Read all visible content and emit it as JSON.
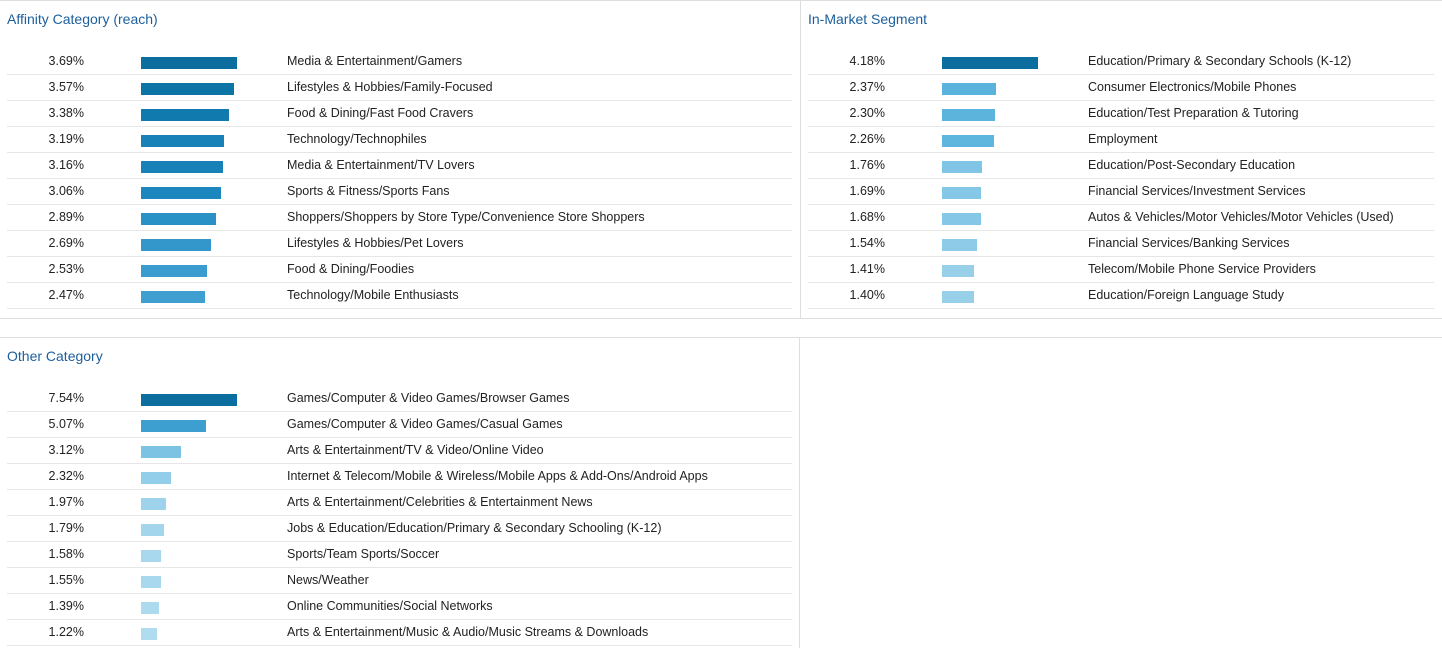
{
  "panels": [
    {
      "id": "affinity",
      "title": "Affinity Category (reach)",
      "rows": [
        {
          "percent_text": "3.69%",
          "value": 3.69,
          "label": "Media & Entertainment/Gamers",
          "color": "#0b6e9e"
        },
        {
          "percent_text": "3.57%",
          "value": 3.57,
          "label": "Lifestyles & Hobbies/Family-Focused",
          "color": "#0d74a6"
        },
        {
          "percent_text": "3.38%",
          "value": 3.38,
          "label": "Food & Dining/Fast Food Cravers",
          "color": "#1079ad"
        },
        {
          "percent_text": "3.19%",
          "value": 3.19,
          "label": "Technology/Technophiles",
          "color": "#1781b8"
        },
        {
          "percent_text": "3.16%",
          "value": 3.16,
          "label": "Media & Entertainment/TV Lovers",
          "color": "#1781b8"
        },
        {
          "percent_text": "3.06%",
          "value": 3.06,
          "label": "Sports & Fitness/Sports Fans",
          "color": "#1c87bf"
        },
        {
          "percent_text": "2.89%",
          "value": 2.89,
          "label": "Shoppers/Shoppers by Store Type/Convenience Store Shoppers",
          "color": "#2a91c7"
        },
        {
          "percent_text": "2.69%",
          "value": 2.69,
          "label": "Lifestyles & Hobbies/Pet Lovers",
          "color": "#3497cb"
        },
        {
          "percent_text": "2.53%",
          "value": 2.53,
          "label": "Food & Dining/Foodies",
          "color": "#3b9ccf"
        },
        {
          "percent_text": "2.47%",
          "value": 2.47,
          "label": "Technology/Mobile Enthusiasts",
          "color": "#3f9fd1"
        }
      ]
    },
    {
      "id": "in-market",
      "title": "In-Market Segment",
      "rows": [
        {
          "percent_text": "4.18%",
          "value": 4.18,
          "label": "Education/Primary & Secondary Schools (K-12)",
          "color": "#0b6e9e"
        },
        {
          "percent_text": "2.37%",
          "value": 2.37,
          "label": "Consumer Electronics/Mobile Phones",
          "color": "#5ab3dc"
        },
        {
          "percent_text": "2.30%",
          "value": 2.3,
          "label": "Education/Test Preparation & Tutoring",
          "color": "#5cb4dd"
        },
        {
          "percent_text": "2.26%",
          "value": 2.26,
          "label": "Employment",
          "color": "#5eb5de"
        },
        {
          "percent_text": "1.76%",
          "value": 1.76,
          "label": "Education/Post-Secondary Education",
          "color": "#80c5e5"
        },
        {
          "percent_text": "1.69%",
          "value": 1.69,
          "label": "Financial Services/Investment Services",
          "color": "#84c7e6"
        },
        {
          "percent_text": "1.68%",
          "value": 1.68,
          "label": "Autos & Vehicles/Motor Vehicles/Motor Vehicles (Used)",
          "color": "#84c7e6"
        },
        {
          "percent_text": "1.54%",
          "value": 1.54,
          "label": "Financial Services/Banking Services",
          "color": "#8dcbe8"
        },
        {
          "percent_text": "1.41%",
          "value": 1.41,
          "label": "Telecom/Mobile Phone Service Providers",
          "color": "#98d0ea"
        },
        {
          "percent_text": "1.40%",
          "value": 1.4,
          "label": "Education/Foreign Language Study",
          "color": "#98d0ea"
        }
      ]
    },
    {
      "id": "other",
      "title": "Other Category",
      "rows": [
        {
          "percent_text": "7.54%",
          "value": 7.54,
          "label": "Games/Computer & Video Games/Browser Games",
          "color": "#0b6e9e"
        },
        {
          "percent_text": "5.07%",
          "value": 5.07,
          "label": "Games/Computer & Video Games/Casual Games",
          "color": "#3d9ed0"
        },
        {
          "percent_text": "3.12%",
          "value": 3.12,
          "label": "Arts & Entertainment/TV & Video/Online Video",
          "color": "#7cc3e3"
        },
        {
          "percent_text": "2.32%",
          "value": 2.32,
          "label": "Internet & Telecom/Mobile & Wireless/Mobile Apps & Add-Ons/Android Apps",
          "color": "#92cde9"
        },
        {
          "percent_text": "1.97%",
          "value": 1.97,
          "label": "Arts & Entertainment/Celebrities & Entertainment News",
          "color": "#9dd3eb"
        },
        {
          "percent_text": "1.79%",
          "value": 1.79,
          "label": "Jobs & Education/Education/Primary & Secondary Schooling (K-12)",
          "color": "#a3d6ed"
        },
        {
          "percent_text": "1.58%",
          "value": 1.58,
          "label": "Sports/Team Sports/Soccer",
          "color": "#a8d8ee"
        },
        {
          "percent_text": "1.55%",
          "value": 1.55,
          "label": "News/Weather",
          "color": "#a8d8ee"
        },
        {
          "percent_text": "1.39%",
          "value": 1.39,
          "label": "Online Communities/Social Networks",
          "color": "#acdaef"
        },
        {
          "percent_text": "1.22%",
          "value": 1.22,
          "label": "Arts & Entertainment/Music & Audio/Music Streams & Downloads",
          "color": "#b0dcf0"
        }
      ]
    }
  ]
}
